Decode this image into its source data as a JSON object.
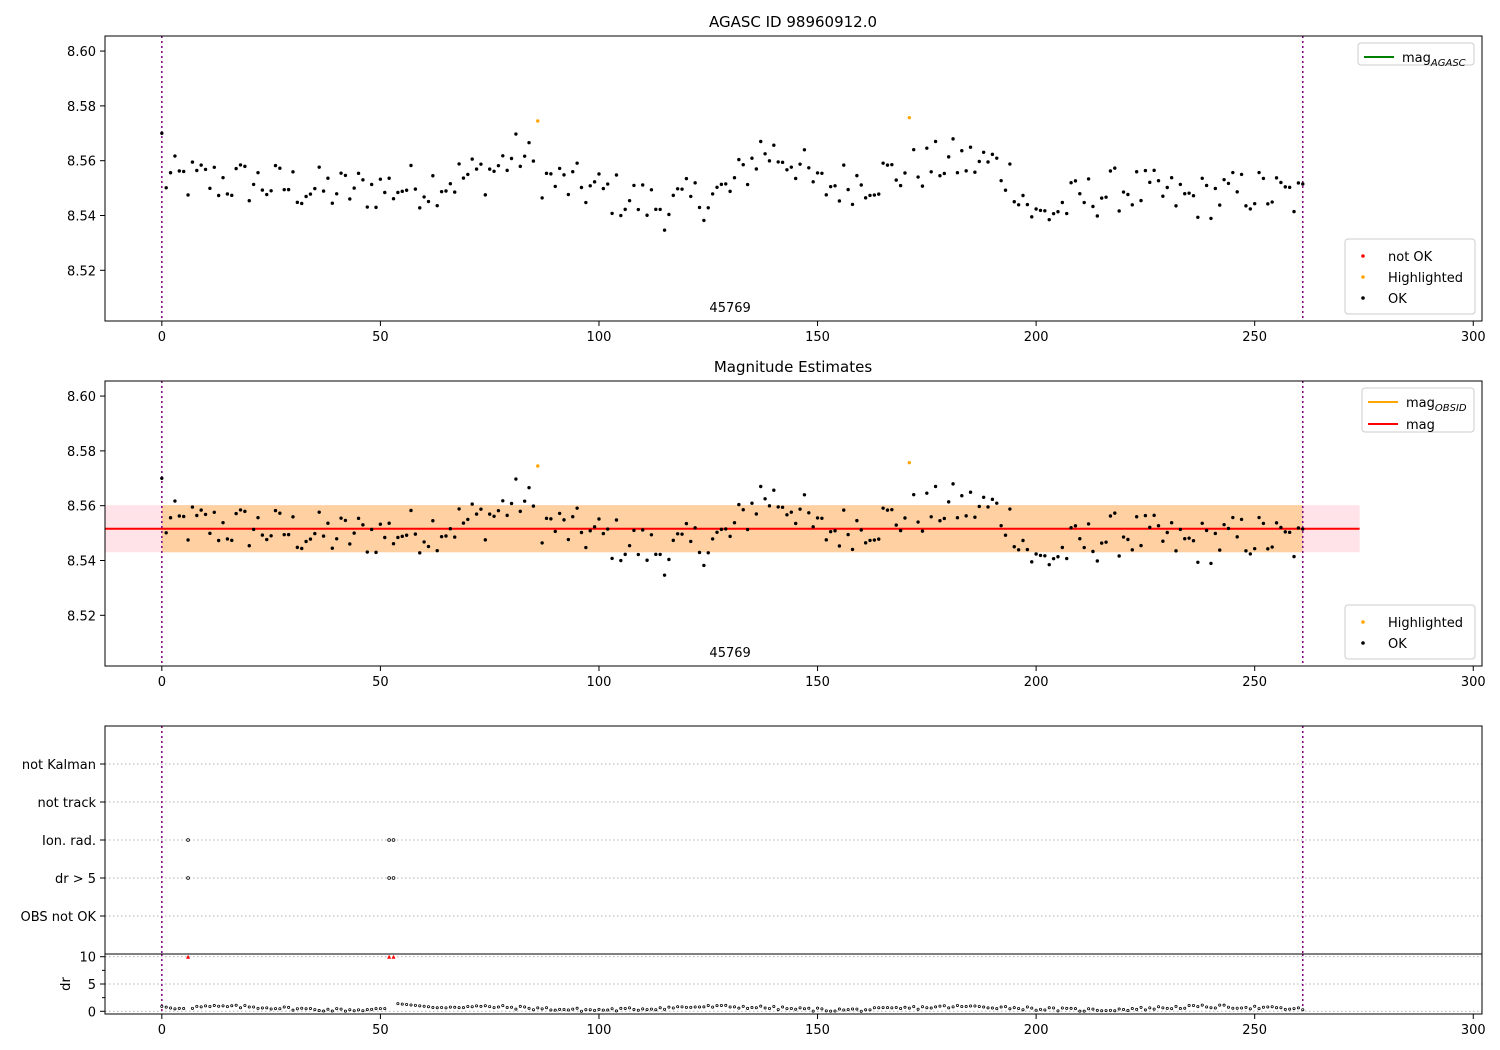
{
  "figure": {
    "title": "AGASC ID 98960912.0",
    "subtitle": "Magnitude Estimates"
  },
  "chart_data": [
    {
      "type": "scatter",
      "title": "AGASC ID 98960912.0",
      "xlim": [
        -13,
        302
      ],
      "ylim": [
        8.5015,
        8.6055
      ],
      "xticks": [
        0,
        50,
        100,
        150,
        200,
        250,
        300
      ],
      "yticks": [
        8.52,
        8.54,
        8.56,
        8.58,
        8.6
      ],
      "obsid_label": "45769",
      "obsid_label_x": 130,
      "vlines": [
        0,
        261
      ],
      "legend_lines": [
        {
          "name": "mag_AGASC",
          "base": "mag",
          "sub": "AGASC",
          "color": "#008000"
        }
      ],
      "legend_points": [
        {
          "name": "not OK",
          "color": "#ff0000"
        },
        {
          "name": "Highlighted",
          "color": "#ffa500"
        },
        {
          "name": "OK",
          "color": "#000000"
        }
      ],
      "highlighted": [
        [
          86,
          8.5745
        ],
        [
          171,
          8.5757
        ]
      ]
    },
    {
      "type": "scatter",
      "title": "Magnitude Estimates",
      "xlim": [
        -13,
        302
      ],
      "ylim": [
        8.5015,
        8.6055
      ],
      "xticks": [
        0,
        50,
        100,
        150,
        200,
        250,
        300
      ],
      "yticks": [
        8.52,
        8.54,
        8.56,
        8.58,
        8.6
      ],
      "obsid_label": "45769",
      "obsid_label_x": 130,
      "vlines": [
        0,
        261
      ],
      "mag": 8.5516,
      "band": [
        8.543,
        8.5602
      ],
      "band_extent_inner": [
        0,
        261
      ],
      "band_extent_outer": [
        -13,
        274
      ],
      "legend_lines": [
        {
          "name": "mag_OBSID",
          "base": "mag",
          "sub": "OBSID",
          "color": "#ffa500"
        },
        {
          "name": "mag",
          "base": "mag",
          "sub": "",
          "color": "#ff0000"
        }
      ],
      "legend_points": [
        {
          "name": "Highlighted",
          "color": "#ffa500"
        },
        {
          "name": "OK",
          "color": "#000000"
        }
      ],
      "highlighted": [
        [
          86,
          8.5745
        ],
        [
          171,
          8.5757
        ]
      ]
    },
    {
      "type": "scatter",
      "title": "",
      "categories": [
        "not Kalman",
        "not track",
        "Ion. rad.",
        "dr > 5",
        "OBS not OK"
      ],
      "flags": {
        "Ion. rad.": [
          6,
          52,
          53
        ],
        "dr > 5": [
          6,
          52,
          53
        ]
      },
      "xlim": [
        -13,
        302
      ],
      "vlines": [
        0,
        261
      ]
    },
    {
      "type": "scatter",
      "title": "",
      "ylabel": "dr",
      "xlim": [
        -13,
        302
      ],
      "ylim": [
        -0.5,
        10.5
      ],
      "xticks": [
        0,
        50,
        100,
        150,
        200,
        250,
        300
      ],
      "yticks": [
        0,
        5,
        10
      ],
      "clipped_points": [
        [
          6,
          10
        ],
        [
          52,
          10
        ],
        [
          53,
          10
        ]
      ],
      "vlines": [
        0,
        261
      ]
    }
  ]
}
